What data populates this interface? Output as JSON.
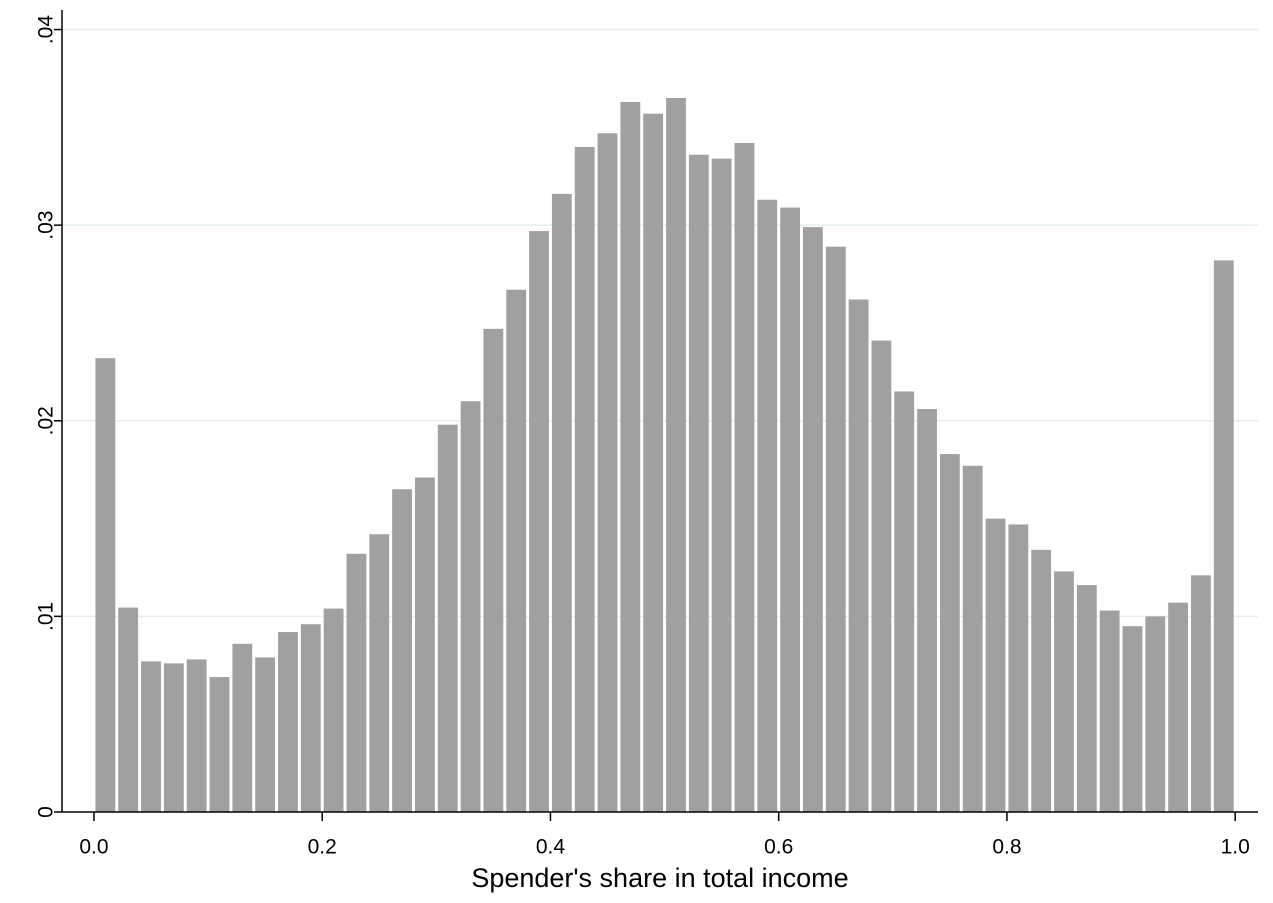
{
  "chart_data": {
    "type": "histogram",
    "x_label": "Spender's share in total income",
    "bins": [
      0,
      0.02,
      0.04,
      0.06,
      0.08,
      0.1,
      0.12,
      0.14,
      0.16,
      0.18,
      0.2,
      0.22,
      0.24,
      0.26,
      0.28,
      0.3,
      0.32,
      0.34,
      0.36,
      0.38,
      0.4,
      0.42,
      0.44,
      0.46,
      0.48,
      0.5,
      0.52,
      0.54,
      0.56,
      0.58,
      0.6,
      0.62,
      0.64,
      0.66,
      0.68,
      0.7,
      0.72,
      0.74,
      0.76,
      0.78,
      0.8,
      0.82,
      0.84,
      0.86,
      0.88,
      0.9,
      0.92,
      0.94,
      0.96,
      0.98,
      1.0
    ],
    "values": [
      0.0232,
      0.01045,
      0.0077,
      0.0076,
      0.0078,
      0.0069,
      0.0086,
      0.0079,
      0.0092,
      0.0096,
      0.0104,
      0.0132,
      0.0142,
      0.0165,
      0.0171,
      0.0198,
      0.021,
      0.0247,
      0.0267,
      0.0297,
      0.0316,
      0.034,
      0.0347,
      0.0363,
      0.0357,
      0.0365,
      0.0336,
      0.0334,
      0.0342,
      0.0313,
      0.0309,
      0.0299,
      0.0289,
      0.0262,
      0.0241,
      0.0215,
      0.0206,
      0.0183,
      0.0177,
      0.015,
      0.0147,
      0.0134,
      0.0123,
      0.0116,
      0.0103,
      0.0095,
      0.01,
      0.0107,
      0.0121,
      0.0282
    ],
    "color": "#a0a0a0",
    "xlim": [
      -0.028,
      1.02
    ],
    "xticks": [
      {
        "value": 0,
        "label": "0.0"
      },
      0.2,
      0.4,
      0.6,
      0.8,
      {
        "value": 1,
        "label": "1.0"
      }
    ],
    "ylim": [
      0,
      0.041
    ],
    "yticks": [
      0,
      {
        "value": 0.01,
        "label": ".01"
      },
      {
        "value": 0.02,
        "label": ".02"
      },
      {
        "value": 0.03,
        "label": ".03"
      },
      {
        "value": 0.04,
        "label": ".04"
      }
    ],
    "grid": true
  }
}
